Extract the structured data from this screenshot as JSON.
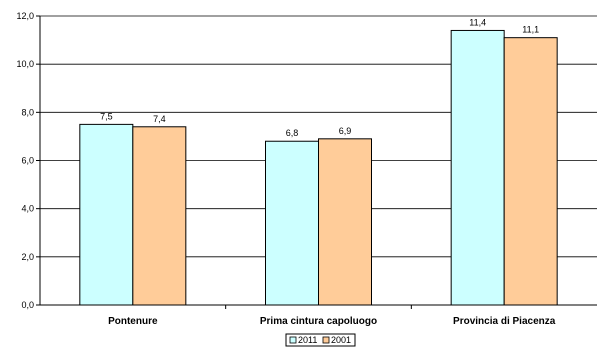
{
  "chart_data": {
    "type": "bar",
    "categories": [
      "Pontenure",
      "Prima cintura capoluogo",
      "Provincia di Piacenza"
    ],
    "series": [
      {
        "name": "2011",
        "values": [
          7.5,
          6.8,
          11.4
        ],
        "color": "#ccffff",
        "value_labels": [
          "7,5",
          "6,8",
          "11,4"
        ]
      },
      {
        "name": "2001",
        "values": [
          7.4,
          6.9,
          11.1
        ],
        "color": "#ffcc99",
        "value_labels": [
          "7,4",
          "6,9",
          "11,1"
        ]
      }
    ],
    "ylim": [
      0,
      12
    ],
    "yticks": [
      0,
      2,
      4,
      6,
      8,
      10,
      12
    ],
    "ytick_labels": [
      "0,0",
      "2,0",
      "4,0",
      "6,0",
      "8,0",
      "10,0",
      "12,0"
    ],
    "grid": true,
    "legend_position": "bottom",
    "title": "",
    "xlabel": "",
    "ylabel": ""
  }
}
